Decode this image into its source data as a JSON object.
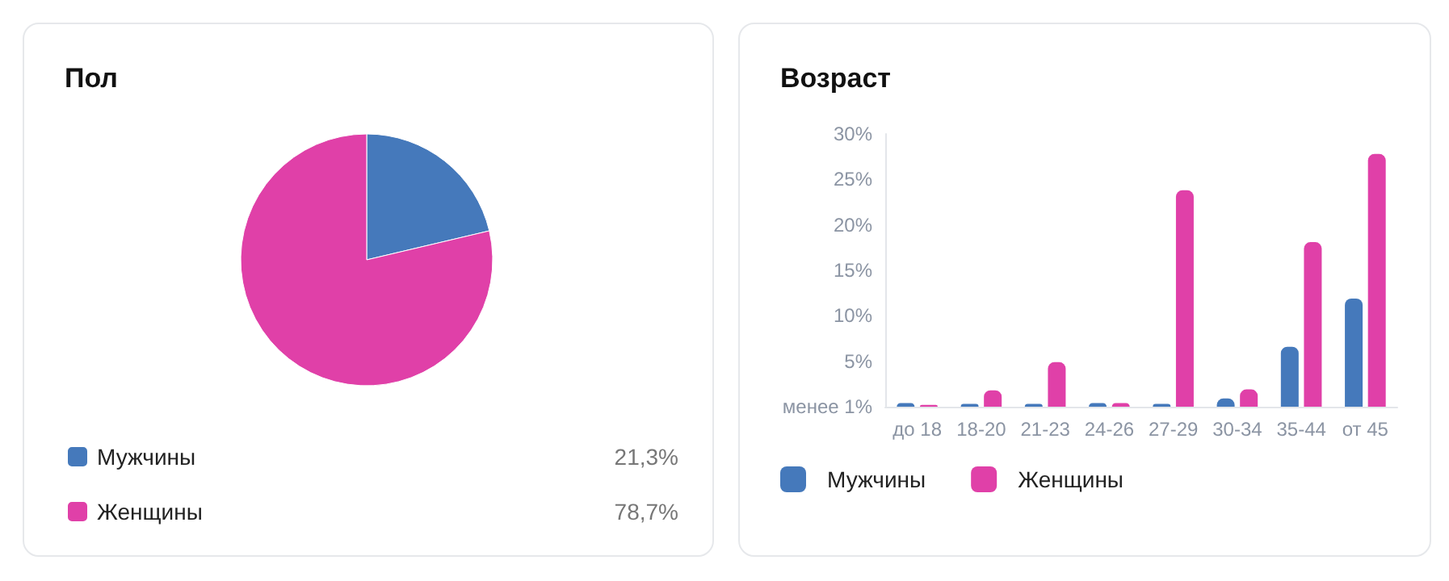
{
  "chart_data": [
    {
      "type": "pie",
      "title": "Пол",
      "categories": [
        "Мужчины",
        "Женщины"
      ],
      "values": [
        21.3,
        78.7
      ],
      "colors": [
        "#4579bb",
        "#e040a8"
      ],
      "value_labels": [
        "21,3%",
        "78,7%"
      ],
      "legend": "bottom"
    },
    {
      "type": "bar",
      "title": "Возраст",
      "categories": [
        "до 18",
        "18-20",
        "21-23",
        "24-26",
        "27-29",
        "30-34",
        "35-44",
        "от 45"
      ],
      "series": [
        {
          "name": "Мужчины",
          "color": "#4579bb",
          "values": [
            0.4,
            0.3,
            0.3,
            0.4,
            0.3,
            0.9,
            6.6,
            11.9
          ]
        },
        {
          "name": "Женщины",
          "color": "#e040a8",
          "values": [
            0.2,
            1.8,
            4.9,
            0.4,
            23.8,
            1.9,
            18.1,
            27.8
          ]
        }
      ],
      "ylim": [
        0,
        30
      ],
      "yticks": [
        {
          "value": 0,
          "label": "менее 1%"
        },
        {
          "value": 5,
          "label": "5%"
        },
        {
          "value": 10,
          "label": "10%"
        },
        {
          "value": 15,
          "label": "15%"
        },
        {
          "value": 20,
          "label": "20%"
        },
        {
          "value": 25,
          "label": "25%"
        },
        {
          "value": 30,
          "label": "30%"
        }
      ],
      "grid": false,
      "legend": "bottom"
    }
  ]
}
